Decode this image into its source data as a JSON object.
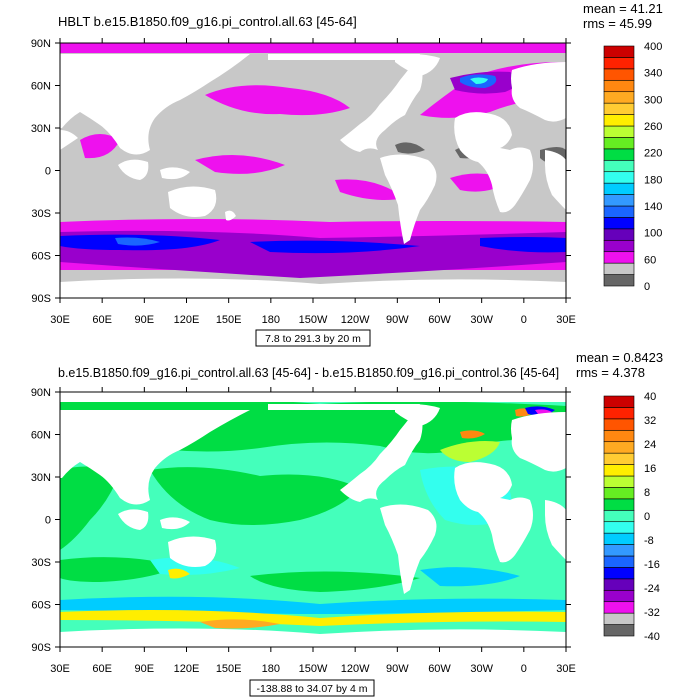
{
  "panels": [
    {
      "title": "HBLT b.e15.B1850.f09_g16.pi_control.all.63 [45-64]",
      "stats": [
        "mean = 41.21",
        "rms = 45.99"
      ],
      "contour_info": "7.8 to 291.3 by 20 m",
      "colorbar": {
        "colors": [
          "#666666",
          "#c8c8c8",
          "#ee11ee",
          "#9900cc",
          "#6600bb",
          "#0000ff",
          "#1a66ff",
          "#3399ff",
          "#00ccff",
          "#33ffee",
          "#44ffbb",
          "#00dd44",
          "#66ee22",
          "#bbff33",
          "#ffee00",
          "#ffcc33",
          "#ffaa22",
          "#ff8811",
          "#ff5500",
          "#ff2200",
          "#cc0000"
        ],
        "labels": [
          "0",
          "60",
          "100",
          "140",
          "180",
          "220",
          "260",
          "300",
          "340",
          "400"
        ]
      }
    },
    {
      "title": "b.e15.B1850.f09_g16.pi_control.all.63 [45-64] - b.e15.B1850.f09_g16.pi_control.36 [45-64]",
      "stats": [
        "mean = 0.8423",
        "rms = 4.378"
      ],
      "contour_info": "-138.88 to 34.07 by 4 m",
      "colorbar": {
        "colors": [
          "#666666",
          "#c8c8c8",
          "#ee11ee",
          "#9900cc",
          "#6600bb",
          "#0000ff",
          "#1a66ff",
          "#3399ff",
          "#00ccff",
          "#33ffee",
          "#44ffbb",
          "#00dd44",
          "#66ee22",
          "#bbff33",
          "#ffee00",
          "#ffcc33",
          "#ffaa22",
          "#ff8811",
          "#ff5500",
          "#ff2200",
          "#cc0000"
        ],
        "labels": [
          "-40",
          "-32",
          "-24",
          "-16",
          "-8",
          "0",
          "8",
          "16",
          "24",
          "32",
          "40"
        ]
      }
    }
  ],
  "axes": {
    "lat_labels": [
      "90N",
      "60N",
      "30N",
      "0",
      "30S",
      "60S",
      "90S"
    ],
    "lon_labels": [
      "30E",
      "60E",
      "90E",
      "120E",
      "150E",
      "180",
      "150W",
      "120W",
      "90W",
      "60W",
      "30W",
      "0",
      "30E"
    ]
  },
  "chart_data": [
    {
      "type": "heatmap",
      "title": "HBLT b.e15.B1850.f09_g16.pi_control.all.63 [45-64]",
      "xlabel": "",
      "ylabel": "",
      "units": "m",
      "x_ticks": [
        "30E",
        "60E",
        "90E",
        "120E",
        "150E",
        "180",
        "150W",
        "120W",
        "90W",
        "60W",
        "30W",
        "0",
        "30E"
      ],
      "y_ticks": [
        "90N",
        "60N",
        "30N",
        "0",
        "30S",
        "60S",
        "90S"
      ],
      "contour_levels": [
        0,
        20,
        40,
        60,
        80,
        100,
        120,
        140,
        160,
        180,
        200,
        220,
        240,
        260,
        280,
        300,
        320,
        340,
        360,
        380,
        400
      ],
      "mean": 41.21,
      "rms": 45.99,
      "min": 7.8,
      "max": 291.3,
      "interval": 20
    },
    {
      "type": "heatmap",
      "title": "b.e15.B1850.f09_g16.pi_control.all.63 [45-64] - b.e15.B1850.f09_g16.pi_control.36 [45-64]",
      "xlabel": "",
      "ylabel": "",
      "units": "m",
      "x_ticks": [
        "30E",
        "60E",
        "90E",
        "120E",
        "150E",
        "180",
        "150W",
        "120W",
        "90W",
        "60W",
        "30W",
        "0",
        "30E"
      ],
      "y_ticks": [
        "90N",
        "60N",
        "30N",
        "0",
        "30S",
        "60S",
        "90S"
      ],
      "contour_levels": [
        -40,
        -36,
        -32,
        -28,
        -24,
        -20,
        -16,
        -12,
        -8,
        -4,
        0,
        4,
        8,
        12,
        16,
        20,
        24,
        28,
        32,
        36,
        40
      ],
      "mean": 0.8423,
      "rms": 4.378,
      "min": -138.88,
      "max": 34.07,
      "interval": 4
    }
  ]
}
